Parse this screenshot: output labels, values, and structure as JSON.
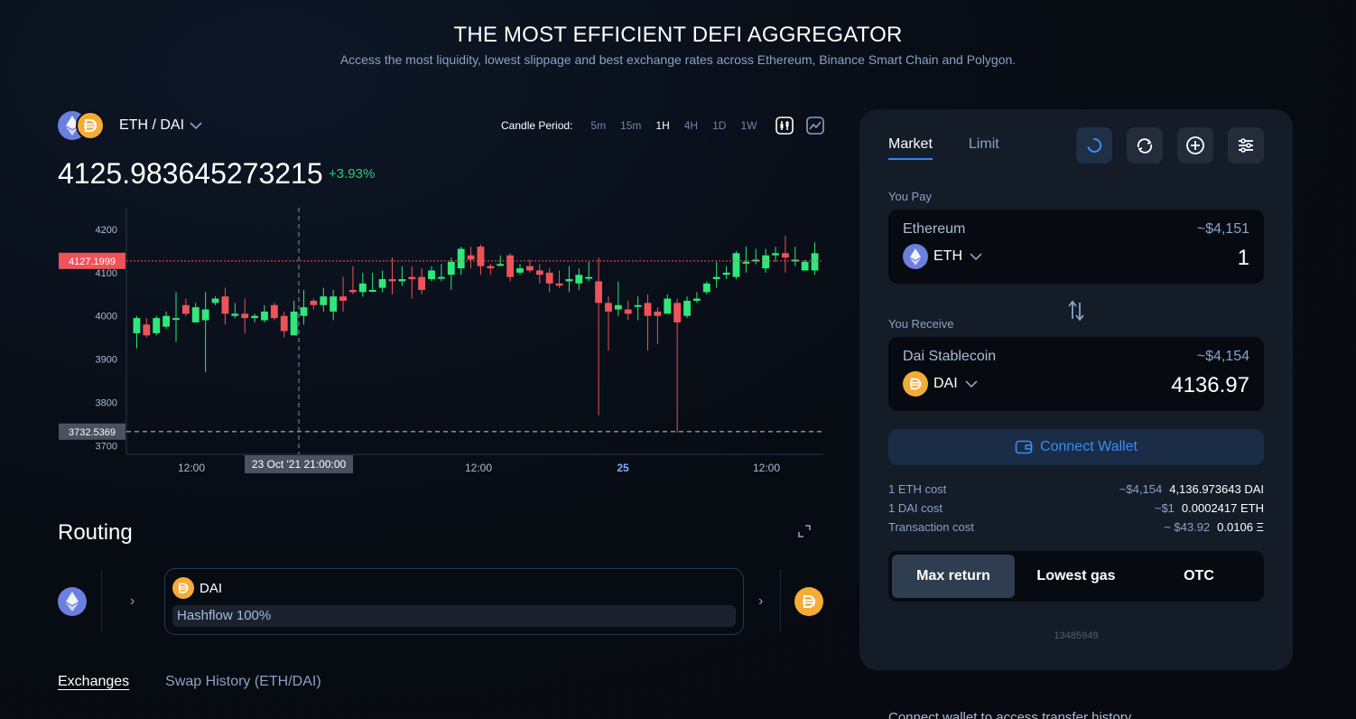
{
  "hero": {
    "title": "THE MOST EFFICIENT DEFI AGGREGATOR",
    "subtitle": "Access the most liquidity, lowest slippage and best exchange rates across Ethereum, Binance Smart Chain and Polygon."
  },
  "pair": {
    "label": "ETH / DAI",
    "base_icon": "eth-icon",
    "quote_icon": "dai-icon"
  },
  "candle": {
    "label": "Candle Period:",
    "periods": [
      "5m",
      "15m",
      "1H",
      "4H",
      "1D",
      "1W"
    ],
    "active": "1H"
  },
  "price": {
    "value": "4125.983645273215",
    "change": "+3.93%"
  },
  "chart_data": {
    "type": "candlestick",
    "x_tick_labels": [
      "12:00",
      "12:00",
      "25",
      "12:00"
    ],
    "y_tick_labels": [
      "4200",
      "4100",
      "4000",
      "3900",
      "3800",
      "3700"
    ],
    "ylim": [
      3680,
      4250
    ],
    "price_marker": "4127.1999",
    "low_marker": "3732.5369",
    "crosshair_date": "23 Oct '21",
    "crosshair_time": "21:00:00",
    "colors": {
      "up": "#2ee87a",
      "down": "#f0525a"
    },
    "candles": [
      [
        3960,
        3995,
        3925,
        4000
      ],
      [
        3980,
        3955,
        3950,
        3995
      ],
      [
        3960,
        3995,
        3955,
        4000
      ],
      [
        3975,
        4000,
        3970,
        4010
      ],
      [
        3995,
        3995,
        3940,
        4055
      ],
      [
        4025,
        4005,
        4000,
        4040
      ],
      [
        3985,
        4020,
        3985,
        4030
      ],
      [
        3990,
        4015,
        3870,
        4055
      ],
      [
        4030,
        4040,
        4025,
        4045
      ],
      [
        4045,
        4005,
        3980,
        4065
      ],
      [
        4000,
        4005,
        3995,
        4030
      ],
      [
        4005,
        3995,
        3960,
        4040
      ],
      [
        3995,
        4000,
        3985,
        4005
      ],
      [
        3990,
        4010,
        3985,
        4025
      ],
      [
        4025,
        3995,
        3990,
        4030
      ],
      [
        4000,
        3965,
        3950,
        4010
      ],
      [
        3955,
        4010,
        3955,
        4035
      ],
      [
        4000,
        4020,
        3980,
        4060
      ],
      [
        4035,
        4025,
        4015,
        4040
      ],
      [
        4025,
        4045,
        4010,
        4065
      ],
      [
        4010,
        4045,
        3990,
        4060
      ],
      [
        4045,
        4035,
        4010,
        4090
      ],
      [
        4060,
        4055,
        4050,
        4115
      ],
      [
        4055,
        4075,
        4045,
        4100
      ],
      [
        4060,
        4060,
        4055,
        4100
      ],
      [
        4065,
        4085,
        4055,
        4105
      ],
      [
        4085,
        4080,
        4050,
        4135
      ],
      [
        4080,
        4085,
        4070,
        4115
      ],
      [
        4090,
        4085,
        4040,
        4115
      ],
      [
        4090,
        4060,
        4050,
        4110
      ],
      [
        4085,
        4105,
        4080,
        4115
      ],
      [
        4090,
        4090,
        4080,
        4120
      ],
      [
        4095,
        4125,
        4060,
        4135
      ],
      [
        4110,
        4155,
        4095,
        4160
      ],
      [
        4140,
        4130,
        4110,
        4160
      ],
      [
        4160,
        4115,
        4095,
        4165
      ],
      [
        4115,
        4110,
        4095,
        4120
      ],
      [
        4120,
        4120,
        4115,
        4140
      ],
      [
        4140,
        4090,
        4080,
        4145
      ],
      [
        4100,
        4110,
        4095,
        4120
      ],
      [
        4115,
        4105,
        4100,
        4130
      ],
      [
        4105,
        4095,
        4075,
        4120
      ],
      [
        4100,
        4075,
        4055,
        4110
      ],
      [
        4075,
        4070,
        4065,
        4105
      ],
      [
        4080,
        4085,
        4055,
        4115
      ],
      [
        4075,
        4095,
        4060,
        4110
      ],
      [
        4090,
        4090,
        4080,
        4125
      ],
      [
        4080,
        4030,
        3770,
        4135
      ],
      [
        4030,
        4010,
        3920,
        4045
      ],
      [
        4015,
        4025,
        4000,
        4080
      ],
      [
        4015,
        4005,
        3990,
        4035
      ],
      [
        4025,
        4025,
        3990,
        4045
      ],
      [
        4030,
        4000,
        3920,
        4050
      ],
      [
        4010,
        4000,
        3935,
        4020
      ],
      [
        4005,
        4040,
        4005,
        4050
      ],
      [
        4030,
        3985,
        3730,
        4040
      ],
      [
        4000,
        4035,
        3995,
        4045
      ],
      [
        4035,
        4040,
        4030,
        4055
      ],
      [
        4055,
        4075,
        4050,
        4080
      ],
      [
        4085,
        4090,
        4065,
        4125
      ],
      [
        4095,
        4100,
        4085,
        4115
      ],
      [
        4090,
        4145,
        4085,
        4150
      ],
      [
        4125,
        4125,
        4100,
        4160
      ],
      [
        4130,
        4130,
        4120,
        4155
      ],
      [
        4110,
        4140,
        4100,
        4155
      ],
      [
        4140,
        4145,
        4125,
        4160
      ],
      [
        4145,
        4135,
        4100,
        4185
      ],
      [
        4130,
        4130,
        4115,
        4160
      ],
      [
        4105,
        4125,
        4110,
        4130
      ],
      [
        4105,
        4145,
        4095,
        4170
      ]
    ]
  },
  "routing": {
    "title": "Routing",
    "token": "DAI",
    "exchange": "Hashflow 100%"
  },
  "bottom_tabs": {
    "exchanges": "Exchanges",
    "history": "Swap History (ETH/DAI)"
  },
  "swap": {
    "tab_market": "Market",
    "tab_limit": "Limit",
    "pay_label": "You Pay",
    "receive_label": "You Receive",
    "pay": {
      "name": "Ethereum",
      "usd": "~$4,151",
      "symbol": "ETH",
      "amount": "1"
    },
    "receive": {
      "name": "Dai Stablecoin",
      "usd": "~$4,154",
      "symbol": "DAI",
      "amount": "4136.97"
    },
    "connect": "Connect Wallet",
    "costs": [
      {
        "k": "1 ETH cost",
        "u": "~$4,154",
        "v": "4,136.973643 DAI"
      },
      {
        "k": "1 DAI cost",
        "u": "~$1",
        "v": "0.0002417 ETH"
      },
      {
        "k": "Transaction cost",
        "u": "~ $43.92",
        "v": "0.0106 Ξ"
      }
    ],
    "modes": [
      "Max return",
      "Lowest gas",
      "OTC"
    ],
    "active_mode": "Max return",
    "block": "13485949"
  },
  "footer_hint": "Connect wallet to access transfer history",
  "colors": {
    "accent": "#3b82f6",
    "up": "#2ee87a",
    "down": "#f0525a",
    "eth": "#6b7fe0",
    "dai": "#f5ac37"
  }
}
